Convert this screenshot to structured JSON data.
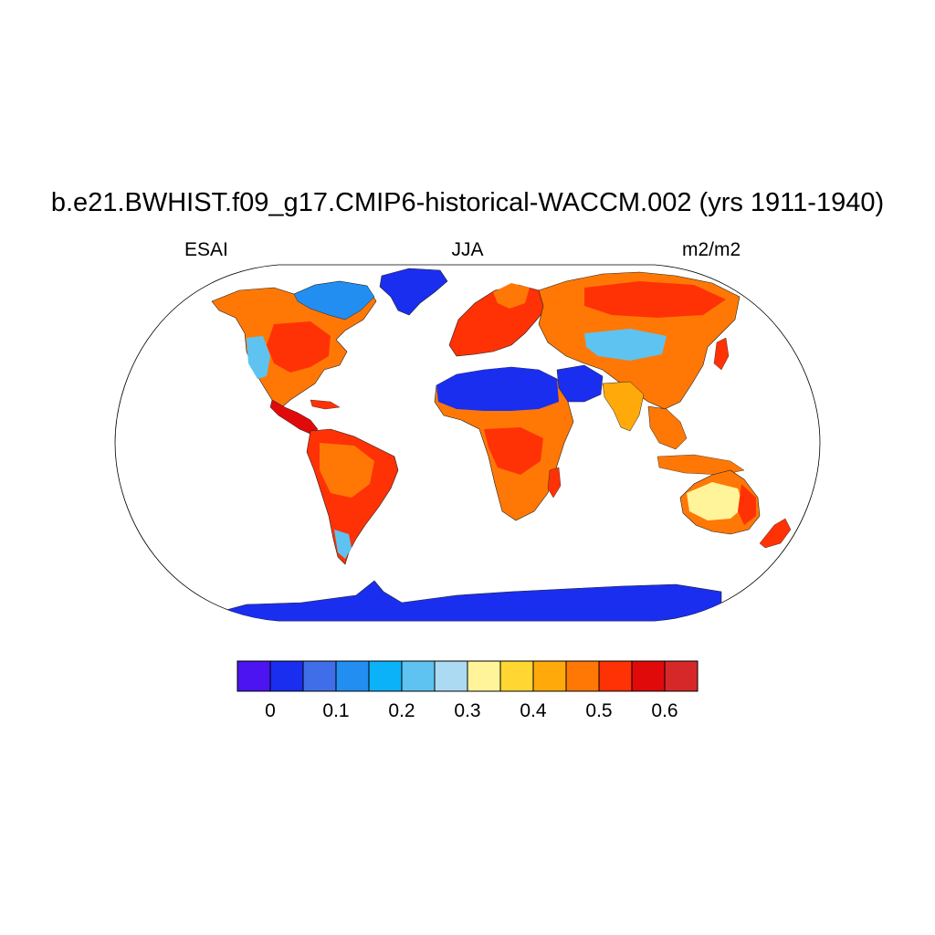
{
  "title": "b.e21.BWHIST.f09_g17.CMIP6-historical-WACCM.002 (yrs 1911-1940)",
  "subtitle_left": "ESAI",
  "subtitle_center": "JJA",
  "subtitle_right": "m2/m2",
  "colorbar": {
    "colors": [
      "#4b14f0",
      "#1a2ef0",
      "#3f6ee8",
      "#228ef2",
      "#0bb2f8",
      "#5ec3f0",
      "#acdaf2",
      "#fff49a",
      "#ffd632",
      "#ffaa0a",
      "#ff7806",
      "#ff3206",
      "#e00a0a",
      "#d62828"
    ],
    "tick_labels": [
      "0",
      "0.1",
      "0.2",
      "0.3",
      "0.4",
      "0.5",
      "0.6"
    ]
  },
  "regions": [
    {
      "name": "Antarctica",
      "color": "#1a2ef0"
    },
    {
      "name": "Greenland",
      "color": "#1a2ef0"
    },
    {
      "name": "Sahara",
      "color": "#1a2ef0"
    },
    {
      "name": "Arabia",
      "color": "#1a2ef0"
    },
    {
      "name": "North America",
      "color": "#ff7806"
    },
    {
      "name": "Central America",
      "color": "#e00a0a"
    },
    {
      "name": "South America",
      "color": "#ff3206"
    },
    {
      "name": "Europe",
      "color": "#ff3206"
    },
    {
      "name": "Africa",
      "color": "#ff7806"
    },
    {
      "name": "Asia",
      "color": "#ff7806"
    },
    {
      "name": "Central Asia",
      "color": "#5ec3f0"
    },
    {
      "name": "India",
      "color": "#ffaa0a"
    },
    {
      "name": "Southeast Asia",
      "color": "#ff7806"
    },
    {
      "name": "Australia",
      "color": "#ff7806"
    },
    {
      "name": "Australian Interior",
      "color": "#fff49a"
    },
    {
      "name": "New Zealand",
      "color": "#ff3206"
    }
  ]
}
